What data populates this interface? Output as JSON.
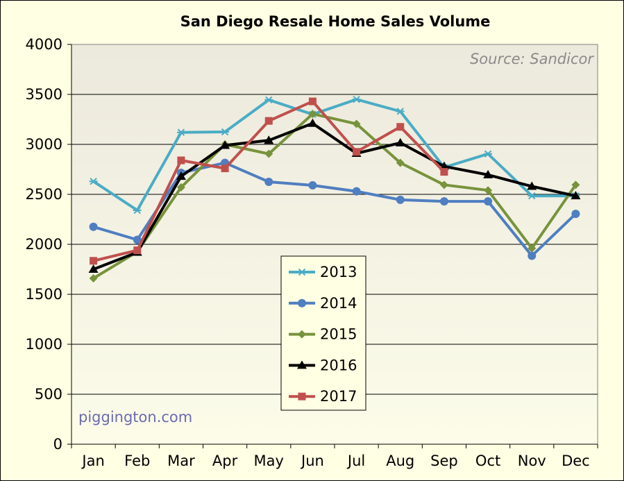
{
  "chart_data": {
    "type": "line",
    "title": "San Diego Resale Home Sales Volume",
    "source_note": "Source: Sandicor",
    "watermark": "piggington.com",
    "categories": [
      "Jan",
      "Feb",
      "Mar",
      "Apr",
      "May",
      "Jun",
      "Jul",
      "Aug",
      "Sep",
      "Oct",
      "Nov",
      "Dec"
    ],
    "ylim": [
      0,
      4000
    ],
    "yticks": [
      0,
      500,
      1000,
      1500,
      2000,
      2500,
      3000,
      3500,
      4000
    ],
    "grid": true,
    "legend_position": "center-bottom",
    "series": [
      {
        "name": "2013",
        "color": "#4aacc5",
        "marker": "asterisk",
        "values": [
          2630,
          2340,
          3120,
          3125,
          3445,
          3300,
          3450,
          3330,
          2770,
          2905,
          2485,
          2485
        ]
      },
      {
        "name": "2014",
        "color": "#4f7ec1",
        "marker": "circle",
        "values": [
          2175,
          2045,
          2715,
          2815,
          2625,
          2590,
          2530,
          2445,
          2430,
          2430,
          1885,
          2305
        ]
      },
      {
        "name": "2015",
        "color": "#77933c",
        "marker": "diamond",
        "values": [
          1660,
          1925,
          2570,
          3000,
          2905,
          3305,
          3205,
          2815,
          2595,
          2540,
          1960,
          2595
        ]
      },
      {
        "name": "2016",
        "color": "#000000",
        "marker": "triangle",
        "values": [
          1750,
          1920,
          2680,
          2990,
          3040,
          3210,
          2910,
          3015,
          2780,
          2695,
          2580,
          2485
        ]
      },
      {
        "name": "2017",
        "color": "#c0504d",
        "marker": "square",
        "values": [
          1835,
          1940,
          2840,
          2760,
          3235,
          3430,
          2925,
          3175,
          2725,
          null,
          null,
          null
        ]
      }
    ]
  }
}
